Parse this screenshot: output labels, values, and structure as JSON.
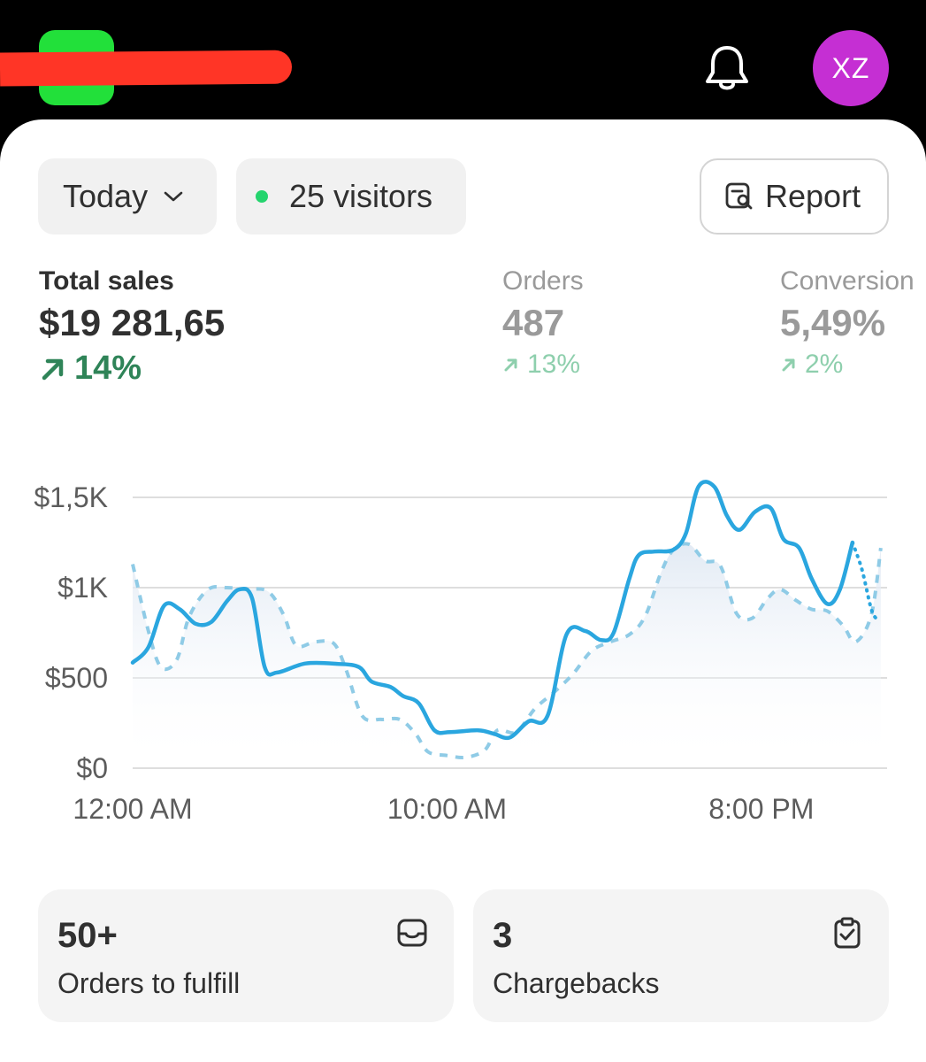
{
  "header": {
    "avatar_initials": "XZ",
    "logo_color": "#22e03a",
    "redaction_color": "#ff3526",
    "avatar_color": "#c52fd3"
  },
  "toolbar": {
    "period_label": "Today",
    "visitors_label": "25 visitors",
    "report_label": "Report"
  },
  "metrics": [
    {
      "label": "Total sales",
      "value": "$19 281,65",
      "delta": "14%"
    },
    {
      "label": "Orders",
      "value": "487",
      "delta": "13%"
    },
    {
      "label": "Conversion",
      "value": "5,49%",
      "delta": "2%"
    }
  ],
  "chart_data": {
    "type": "line",
    "title": "",
    "y_ticks": [
      "$1,5K",
      "$1K",
      "$500",
      "$0"
    ],
    "x_ticks": [
      "12:00 AM",
      "10:00 AM",
      "8:00 PM"
    ],
    "ylim": [
      0,
      1500
    ],
    "grid": true,
    "x_units": "hours since 12:00 AM",
    "series": [
      {
        "style": "solid",
        "color": "#2aa6df",
        "points": [
          [
            0,
            585
          ],
          [
            0.5,
            670
          ],
          [
            1,
            900
          ],
          [
            1.5,
            880
          ],
          [
            2,
            800
          ],
          [
            2.5,
            810
          ],
          [
            3,
            925
          ],
          [
            3.4,
            990
          ],
          [
            3.8,
            940
          ],
          [
            4.2,
            560
          ],
          [
            4.6,
            530
          ],
          [
            5.5,
            580
          ],
          [
            6.5,
            578
          ],
          [
            7.2,
            560
          ],
          [
            7.6,
            480
          ],
          [
            8.2,
            450
          ],
          [
            8.6,
            400
          ],
          [
            9.1,
            360
          ],
          [
            9.6,
            210
          ],
          [
            10.1,
            200
          ],
          [
            11,
            210
          ],
          [
            11.5,
            190
          ],
          [
            12,
            170
          ],
          [
            12.6,
            260
          ],
          [
            13.2,
            290
          ],
          [
            13.8,
            740
          ],
          [
            14.4,
            760
          ],
          [
            14.9,
            710
          ],
          [
            15.3,
            750
          ],
          [
            15.8,
            1050
          ],
          [
            16.1,
            1180
          ],
          [
            16.6,
            1200
          ],
          [
            17.2,
            1210
          ],
          [
            17.6,
            1300
          ],
          [
            18,
            1560
          ],
          [
            18.5,
            1560
          ],
          [
            18.9,
            1400
          ],
          [
            19.3,
            1320
          ],
          [
            19.8,
            1420
          ],
          [
            20.3,
            1440
          ],
          [
            20.7,
            1270
          ],
          [
            21.2,
            1220
          ],
          [
            21.6,
            1050
          ],
          [
            22.1,
            910
          ],
          [
            22.5,
            990
          ],
          [
            22.9,
            1250
          ]
        ]
      },
      {
        "style": "dotted",
        "color": "#2aa6df",
        "points": [
          [
            22.9,
            1250
          ],
          [
            23.2,
            1100
          ],
          [
            23.5,
            880
          ],
          [
            23.7,
            820
          ]
        ]
      },
      {
        "style": "dashed",
        "color": "#8fcbe6",
        "points": [
          [
            0,
            1130
          ],
          [
            0.5,
            760
          ],
          [
            0.9,
            560
          ],
          [
            1.4,
            600
          ],
          [
            1.8,
            840
          ],
          [
            2.4,
            990
          ],
          [
            3,
            1000
          ],
          [
            3.6,
            990
          ],
          [
            4.3,
            980
          ],
          [
            4.8,
            850
          ],
          [
            5.2,
            680
          ],
          [
            5.8,
            700
          ],
          [
            6.4,
            690
          ],
          [
            6.8,
            540
          ],
          [
            7.3,
            290
          ],
          [
            7.9,
            270
          ],
          [
            8.5,
            270
          ],
          [
            9,
            190
          ],
          [
            9.4,
            90
          ],
          [
            10,
            70
          ],
          [
            10.6,
            60
          ],
          [
            11.2,
            100
          ],
          [
            11.6,
            210
          ],
          [
            12.2,
            200
          ],
          [
            12.8,
            330
          ],
          [
            13.4,
            420
          ],
          [
            14,
            520
          ],
          [
            14.6,
            650
          ],
          [
            15.2,
            700
          ],
          [
            15.8,
            740
          ],
          [
            16.3,
            840
          ],
          [
            16.8,
            1080
          ],
          [
            17.2,
            1210
          ],
          [
            17.7,
            1240
          ],
          [
            18.2,
            1150
          ],
          [
            18.7,
            1120
          ],
          [
            19.2,
            860
          ],
          [
            19.7,
            830
          ],
          [
            20.2,
            940
          ],
          [
            20.6,
            990
          ],
          [
            21.1,
            930
          ],
          [
            21.6,
            880
          ],
          [
            22.1,
            870
          ],
          [
            22.6,
            790
          ],
          [
            23,
            700
          ],
          [
            23.5,
            850
          ],
          [
            23.8,
            1220
          ]
        ]
      }
    ]
  },
  "cards": [
    {
      "value": "50+",
      "label": "Orders to fulfill"
    },
    {
      "value": "3",
      "label": "Chargebacks"
    }
  ]
}
